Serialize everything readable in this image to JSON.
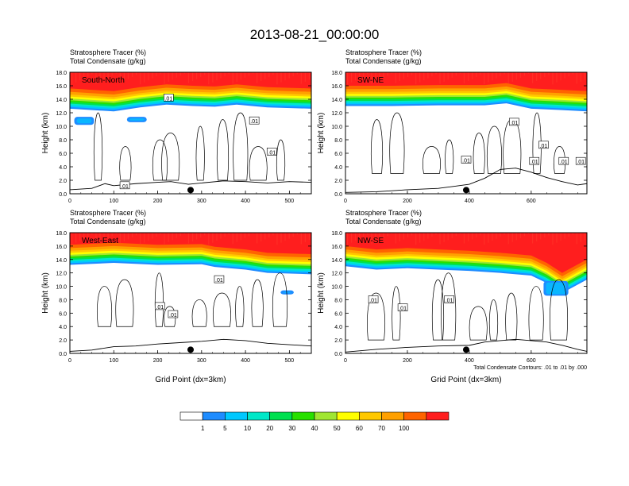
{
  "title": "2013-08-21_00:00:00",
  "colors": {
    "levels": [
      "#ffffff",
      "#1e8cff",
      "#00c8ff",
      "#00e8c8",
      "#00e050",
      "#28e000",
      "#a0e632",
      "#ffff00",
      "#ffc800",
      "#ffa000",
      "#ff6400",
      "#ff1e1e"
    ],
    "contour": "#000000",
    "terrain": "#000000",
    "marker": "#000000"
  },
  "chart_data": [
    {
      "type": "heatmap",
      "label": "South-North",
      "title_lines": [
        "Stratosphere Tracer   (%)",
        "Total Condensate   (g/kg)"
      ],
      "ylabel": "Height (km)",
      "xlabel": "",
      "xlim": [
        0,
        550
      ],
      "ylim": [
        0,
        18
      ],
      "xticks": [
        "0",
        "100",
        "200",
        "300",
        "400",
        "500"
      ],
      "yticks": [
        "0.0",
        "2.0",
        "4.0",
        "6.0",
        "8.0",
        "10.0",
        "12.0",
        "14.0",
        "16.0",
        "18.0"
      ],
      "marker_x": 275,
      "contour_labels": [
        {
          "text": ".01",
          "x": 225,
          "y": 14.2
        },
        {
          "text": ".01",
          "x": 420,
          "y": 10.8
        },
        {
          "text": ".01",
          "x": 460,
          "y": 6.2
        },
        {
          "text": ".01",
          "x": 125,
          "y": 1.2
        }
      ],
      "strato_bands": [
        {
          "x": [
            0,
            100,
            160,
            220,
            280,
            330,
            380,
            450,
            550
          ],
          "base": [
            12.6,
            12.2,
            12.8,
            13.2,
            13.0,
            12.9,
            13.2,
            12.8,
            12.6
          ]
        }
      ],
      "blue_blobs": [
        {
          "x": 10,
          "y": 10.2,
          "w": 45,
          "h": 1.2
        },
        {
          "x": 130,
          "y": 10.6,
          "w": 45,
          "h": 0.8
        }
      ],
      "terrain": {
        "x": [
          0,
          50,
          80,
          100,
          150,
          200,
          230,
          270,
          300,
          350,
          400,
          450,
          500,
          550
        ],
        "y": [
          0.6,
          0.8,
          1.5,
          1.2,
          1.5,
          1.7,
          1.8,
          1.4,
          1.6,
          1.9,
          1.8,
          1.6,
          1.8,
          1.7
        ]
      }
    },
    {
      "type": "heatmap",
      "label": "SW-NE",
      "title_lines": [
        "Stratosphere Tracer   (%)",
        "Total Condensate   (g/kg)"
      ],
      "ylabel": "Height (km)",
      "xlabel": "",
      "xlim": [
        0,
        780
      ],
      "ylim": [
        0,
        18
      ],
      "xticks": [
        "0",
        "200",
        "400",
        "600"
      ],
      "yticks": [
        "0.0",
        "2.0",
        "4.0",
        "6.0",
        "8.0",
        "10.0",
        "12.0",
        "14.0",
        "16.0",
        "18.0"
      ],
      "marker_x": 390,
      "contour_labels": [
        {
          "text": ".01",
          "x": 545,
          "y": 10.6
        },
        {
          "text": ".01",
          "x": 390,
          "y": 5.0
        },
        {
          "text": ".01",
          "x": 640,
          "y": 7.2
        },
        {
          "text": ".01",
          "x": 610,
          "y": 4.8
        },
        {
          "text": ".01",
          "x": 705,
          "y": 4.8
        },
        {
          "text": ".01",
          "x": 760,
          "y": 4.8
        }
      ],
      "strato_bands": [
        {
          "x": [
            0,
            150,
            300,
            450,
            520,
            600,
            700,
            780
          ],
          "base": [
            13.0,
            13.0,
            13.1,
            13.1,
            13.4,
            12.6,
            12.4,
            12.2
          ]
        }
      ],
      "blue_blobs": [],
      "terrain": {
        "x": [
          0,
          100,
          200,
          300,
          350,
          400,
          450,
          500,
          550,
          600,
          650,
          700,
          750,
          780
        ],
        "y": [
          0.2,
          0.3,
          0.6,
          0.8,
          1.1,
          1.4,
          2.3,
          3.6,
          3.8,
          3.2,
          2.4,
          1.8,
          1.3,
          1.5
        ]
      }
    },
    {
      "type": "heatmap",
      "label": "West-East",
      "title_lines": [
        "Stratosphere Tracer   (%)",
        "Total Condensate   (g/kg)"
      ],
      "ylabel": "Height (km)",
      "xlabel": "Grid Point (dx=3km)",
      "xlim": [
        0,
        550
      ],
      "ylim": [
        0,
        18
      ],
      "xticks": [
        "0",
        "100",
        "200",
        "300",
        "400",
        "500"
      ],
      "yticks": [
        "0.0",
        "2.0",
        "4.0",
        "6.0",
        "8.0",
        "10.0",
        "12.0",
        "14.0",
        "16.0",
        "18.0"
      ],
      "marker_x": 275,
      "contour_labels": [
        {
          "text": ".01",
          "x": 340,
          "y": 11.0
        },
        {
          "text": ".01",
          "x": 205,
          "y": 7.0
        },
        {
          "text": ".01",
          "x": 235,
          "y": 5.8
        }
      ],
      "strato_bands": [
        {
          "x": [
            0,
            100,
            200,
            300,
            330,
            400,
            450,
            550
          ],
          "base": [
            13.2,
            13.5,
            13.2,
            13.3,
            12.9,
            12.5,
            12.0,
            11.8
          ]
        }
      ],
      "blue_blobs": [
        {
          "x": 480,
          "y": 8.8,
          "w": 30,
          "h": 0.6
        }
      ],
      "terrain": {
        "x": [
          0,
          50,
          100,
          150,
          200,
          250,
          300,
          350,
          400,
          450,
          500,
          550
        ],
        "y": [
          0.3,
          0.5,
          1.0,
          1.1,
          1.4,
          1.6,
          1.8,
          2.1,
          1.9,
          1.5,
          1.3,
          1.1
        ]
      }
    },
    {
      "type": "heatmap",
      "label": "NW-SE",
      "title_lines": [
        "Stratosphere Tracer   (%)",
        "Total Condensate   (g/kg)"
      ],
      "ylabel": "Height (km)",
      "xlabel": "Grid Point (dx=3km)",
      "xlim": [
        0,
        780
      ],
      "ylim": [
        0,
        18
      ],
      "xticks": [
        "0",
        "200",
        "400",
        "600"
      ],
      "yticks": [
        "0.0",
        "2.0",
        "4.0",
        "6.0",
        "8.0",
        "10.0",
        "12.0",
        "14.0",
        "16.0",
        "18.0"
      ],
      "marker_x": 390,
      "footnote": "Total Condensate Contours: .01 to .01 by .000",
      "contour_labels": [
        {
          "text": ".01",
          "x": 90,
          "y": 8.0
        },
        {
          "text": ".01",
          "x": 185,
          "y": 6.8
        },
        {
          "text": ".01",
          "x": 335,
          "y": 8.0
        }
      ],
      "strato_bands": [
        {
          "x": [
            0,
            100,
            200,
            300,
            400,
            500,
            600,
            650,
            700,
            780
          ],
          "base": [
            13.0,
            12.5,
            12.7,
            12.5,
            12.3,
            12.0,
            11.6,
            10.5,
            9.0,
            11.0
          ]
        }
      ],
      "blue_blobs": [
        {
          "x": 640,
          "y": 8.6,
          "w": 80,
          "h": 2.2
        }
      ],
      "terrain": {
        "x": [
          0,
          100,
          200,
          300,
          400,
          450,
          500,
          550,
          600,
          650,
          700,
          750,
          780
        ],
        "y": [
          0.2,
          0.6,
          0.9,
          1.1,
          1.2,
          1.7,
          1.9,
          2.1,
          1.9,
          1.7,
          1.2,
          0.6,
          0.3
        ]
      }
    }
  ],
  "colorbar": {
    "labels": [
      "1",
      "5",
      "10",
      "20",
      "30",
      "40",
      "50",
      "60",
      "70",
      "100"
    ]
  }
}
